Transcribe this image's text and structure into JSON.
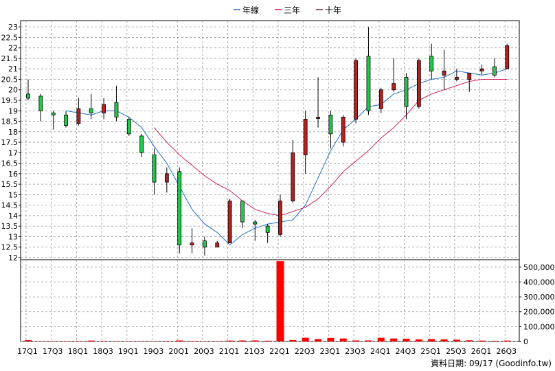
{
  "legend": [
    {
      "label": "年線",
      "color": "#1f6fc8"
    },
    {
      "label": "三年",
      "color": "#cc1f56"
    },
    {
      "label": "十年",
      "color": "#8b1a4a"
    }
  ],
  "source_note": "資料日期: 09/17  (Goodinfo.tw)",
  "chart_data": [
    {
      "type": "candlestick",
      "title": "",
      "x_ticks": [
        "17Q1",
        "17Q3",
        "18Q1",
        "18Q3",
        "19Q1",
        "19Q3",
        "20Q1",
        "20Q3",
        "21Q1",
        "21Q3",
        "22Q1",
        "22Q3",
        "23Q1",
        "23Q3",
        "24Q1",
        "24Q3",
        "25Q1",
        "25Q3",
        "26Q1",
        "26Q3"
      ],
      "ylim": [
        11.9,
        23.3
      ],
      "y_ticks": [
        "12",
        "12.5",
        "13",
        "13.5",
        "14",
        "14.5",
        "15",
        "15.5",
        "16",
        "16.5",
        "17",
        "17.5",
        "18",
        "18.5",
        "19",
        "19.5",
        "20",
        "20.5",
        "21",
        "21.5",
        "22",
        "22.5",
        "23"
      ],
      "grid": true,
      "legend_position": "top-center",
      "up_color": "#b22222",
      "down_color": "#22c94a",
      "candles": [
        {
          "x": "17Q1",
          "o": 19.8,
          "h": 20.5,
          "l": 19.5,
          "c": 19.6
        },
        {
          "x": "17Q2",
          "o": 19.7,
          "h": 19.8,
          "l": 18.5,
          "c": 19.0
        },
        {
          "x": "17Q3",
          "o": 18.9,
          "h": 19.0,
          "l": 18.1,
          "c": 18.8
        },
        {
          "x": "17Q4",
          "o": 18.8,
          "h": 19.0,
          "l": 18.2,
          "c": 18.3
        },
        {
          "x": "18Q1",
          "o": 18.4,
          "h": 19.6,
          "l": 18.3,
          "c": 19.1
        },
        {
          "x": "18Q2",
          "o": 19.1,
          "h": 19.8,
          "l": 18.6,
          "c": 18.9
        },
        {
          "x": "18Q3",
          "o": 18.9,
          "h": 19.6,
          "l": 18.6,
          "c": 19.3
        },
        {
          "x": "18Q4",
          "o": 19.4,
          "h": 20.2,
          "l": 18.5,
          "c": 18.7
        },
        {
          "x": "19Q1",
          "o": 18.6,
          "h": 18.7,
          "l": 17.8,
          "c": 17.9
        },
        {
          "x": "19Q2",
          "o": 17.8,
          "h": 17.9,
          "l": 16.8,
          "c": 17.0
        },
        {
          "x": "19Q3",
          "o": 16.9,
          "h": 17.2,
          "l": 15.0,
          "c": 15.6
        },
        {
          "x": "19Q4",
          "o": 15.6,
          "h": 16.3,
          "l": 15.1,
          "c": 16.0
        },
        {
          "x": "20Q1",
          "o": 16.1,
          "h": 16.3,
          "l": 12.2,
          "c": 12.6
        },
        {
          "x": "20Q2",
          "o": 12.6,
          "h": 13.4,
          "l": 12.2,
          "c": 12.7
        },
        {
          "x": "20Q3",
          "o": 12.8,
          "h": 13.0,
          "l": 12.1,
          "c": 12.5
        },
        {
          "x": "20Q4",
          "o": 12.5,
          "h": 12.8,
          "l": 12.5,
          "c": 12.7
        },
        {
          "x": "21Q1",
          "o": 12.7,
          "h": 14.8,
          "l": 12.7,
          "c": 14.7
        },
        {
          "x": "21Q2",
          "o": 14.7,
          "h": 14.7,
          "l": 13.4,
          "c": 13.7
        },
        {
          "x": "21Q3",
          "o": 13.7,
          "h": 13.8,
          "l": 12.8,
          "c": 13.6
        },
        {
          "x": "21Q4",
          "o": 13.5,
          "h": 13.6,
          "l": 12.7,
          "c": 13.2
        },
        {
          "x": "22Q1",
          "o": 13.1,
          "h": 15.0,
          "l": 13.0,
          "c": 14.7
        },
        {
          "x": "22Q2",
          "o": 14.7,
          "h": 17.6,
          "l": 14.6,
          "c": 17.0
        },
        {
          "x": "22Q3",
          "o": 16.9,
          "h": 19.0,
          "l": 16.0,
          "c": 18.6
        },
        {
          "x": "22Q4",
          "o": 18.7,
          "h": 20.6,
          "l": 18.2,
          "c": 18.7
        },
        {
          "x": "23Q1",
          "o": 18.8,
          "h": 19.0,
          "l": 17.2,
          "c": 17.9
        },
        {
          "x": "23Q2",
          "o": 17.5,
          "h": 18.8,
          "l": 17.3,
          "c": 18.7
        },
        {
          "x": "23Q3",
          "o": 18.6,
          "h": 21.5,
          "l": 18.4,
          "c": 21.4
        },
        {
          "x": "23Q4",
          "o": 21.6,
          "h": 23.0,
          "l": 18.8,
          "c": 19.0
        },
        {
          "x": "24Q1",
          "o": 19.1,
          "h": 20.1,
          "l": 18.9,
          "c": 20.0
        },
        {
          "x": "24Q2",
          "o": 20.0,
          "h": 21.5,
          "l": 19.9,
          "c": 20.3
        },
        {
          "x": "24Q3",
          "o": 20.6,
          "h": 20.8,
          "l": 18.6,
          "c": 19.2
        },
        {
          "x": "24Q4",
          "o": 19.2,
          "h": 21.5,
          "l": 19.1,
          "c": 21.4
        },
        {
          "x": "25Q1",
          "o": 21.6,
          "h": 22.2,
          "l": 20.5,
          "c": 20.9
        },
        {
          "x": "25Q2",
          "o": 20.7,
          "h": 21.9,
          "l": 20.0,
          "c": 20.9
        },
        {
          "x": "25Q3",
          "o": 20.5,
          "h": 21.0,
          "l": 20.4,
          "c": 20.6
        },
        {
          "x": "25Q4",
          "o": 20.5,
          "h": 20.8,
          "l": 19.9,
          "c": 20.8
        },
        {
          "x": "26Q1",
          "o": 20.9,
          "h": 21.2,
          "l": 20.7,
          "c": 21.0
        },
        {
          "x": "26Q2",
          "o": 21.1,
          "h": 21.5,
          "l": 20.6,
          "c": 20.7
        },
        {
          "x": "26Q3",
          "o": 21.0,
          "h": 22.2,
          "l": 21.0,
          "c": 22.1
        }
      ],
      "series": [
        {
          "name": "年線",
          "color": "#1f6fc8",
          "values": [
            null,
            null,
            null,
            19.0,
            18.9,
            18.8,
            19.0,
            19.0,
            18.7,
            18.2,
            17.3,
            16.5,
            15.4,
            14.3,
            13.6,
            13.2,
            12.6,
            13.1,
            13.4,
            13.6,
            13.7,
            13.8,
            14.5,
            15.8,
            17.1,
            18.1,
            18.6,
            19.2,
            19.3,
            19.8,
            20.0,
            20.3,
            20.5,
            20.6,
            20.9,
            20.8,
            20.7,
            20.8,
            21.0
          ]
        },
        {
          "name": "三年",
          "color": "#cc1f56",
          "values": [
            null,
            null,
            null,
            null,
            null,
            null,
            null,
            null,
            null,
            null,
            18.2,
            17.5,
            16.9,
            16.4,
            15.9,
            15.5,
            15.2,
            14.7,
            14.3,
            14.1,
            14.0,
            14.2,
            14.4,
            14.8,
            15.4,
            16.1,
            16.6,
            17.1,
            17.7,
            18.2,
            18.8,
            19.5,
            19.8,
            20.0,
            20.2,
            20.4,
            20.5,
            20.5,
            20.5
          ]
        }
      ]
    },
    {
      "type": "bar",
      "title": "",
      "ylim": [
        0,
        550000
      ],
      "y_ticks": [
        "0",
        "100,000",
        "200,000",
        "300,000",
        "400,000",
        "500,000"
      ],
      "grid": true,
      "color": "#ff0000",
      "values": [
        9000,
        2000,
        1500,
        1500,
        3000,
        6000,
        3000,
        2000,
        2000,
        2000,
        2000,
        3000,
        7000,
        3000,
        2000,
        2000,
        6000,
        7000,
        7000,
        5000,
        540000,
        10000,
        25000,
        16000,
        24000,
        20000,
        7000,
        7000,
        25000,
        20000,
        18000,
        14000,
        16000,
        14000,
        12000,
        8000,
        6000,
        4000,
        6000
      ]
    }
  ]
}
